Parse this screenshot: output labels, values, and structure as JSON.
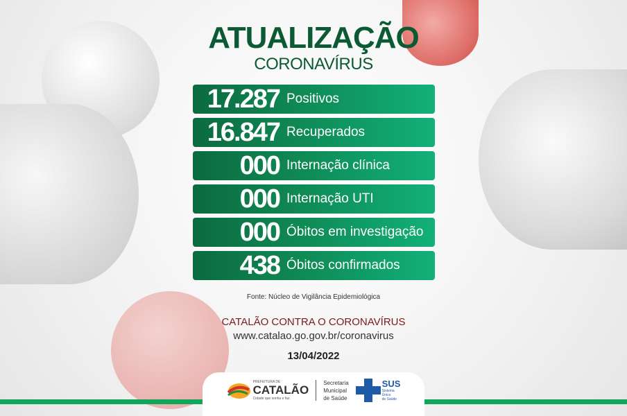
{
  "header": {
    "title": "ATUALIZAÇÃO",
    "subtitle": "CORONAVÍRUS"
  },
  "stats": [
    {
      "value": "17.287",
      "label": "Positivos"
    },
    {
      "value": "16.847",
      "label": "Recuperados"
    },
    {
      "value": "000",
      "label": "Internação clínica"
    },
    {
      "value": "000",
      "label": "Internação UTI"
    },
    {
      "value": "000",
      "label": "Óbitos em investigação"
    },
    {
      "value": "438",
      "label": "Óbitos confirmados"
    }
  ],
  "source": "Fonte: Núcleo de Vigilância Epidemiológica",
  "campaign": "CATALÃO CONTRA O CORONAVÍRUS",
  "url": "www.catalao.go.gov.br/coronavirus",
  "date": "13/04/2022",
  "footer": {
    "catalao_top": "PREFEITURA DE",
    "catalao_name": "CATALÃO",
    "catalao_slogan": "Cidade que sonha e faz.",
    "secretaria": [
      "Secretaria",
      "Municipal",
      "de Saúde"
    ],
    "sus": "SUS",
    "sus_sub": [
      "Sistema",
      "Único",
      "de Saúde"
    ]
  },
  "colors": {
    "green_dark": "#0c6a40",
    "green_light": "#12b07a",
    "title": "#0b5a33",
    "campaign": "#7b1a1d"
  }
}
